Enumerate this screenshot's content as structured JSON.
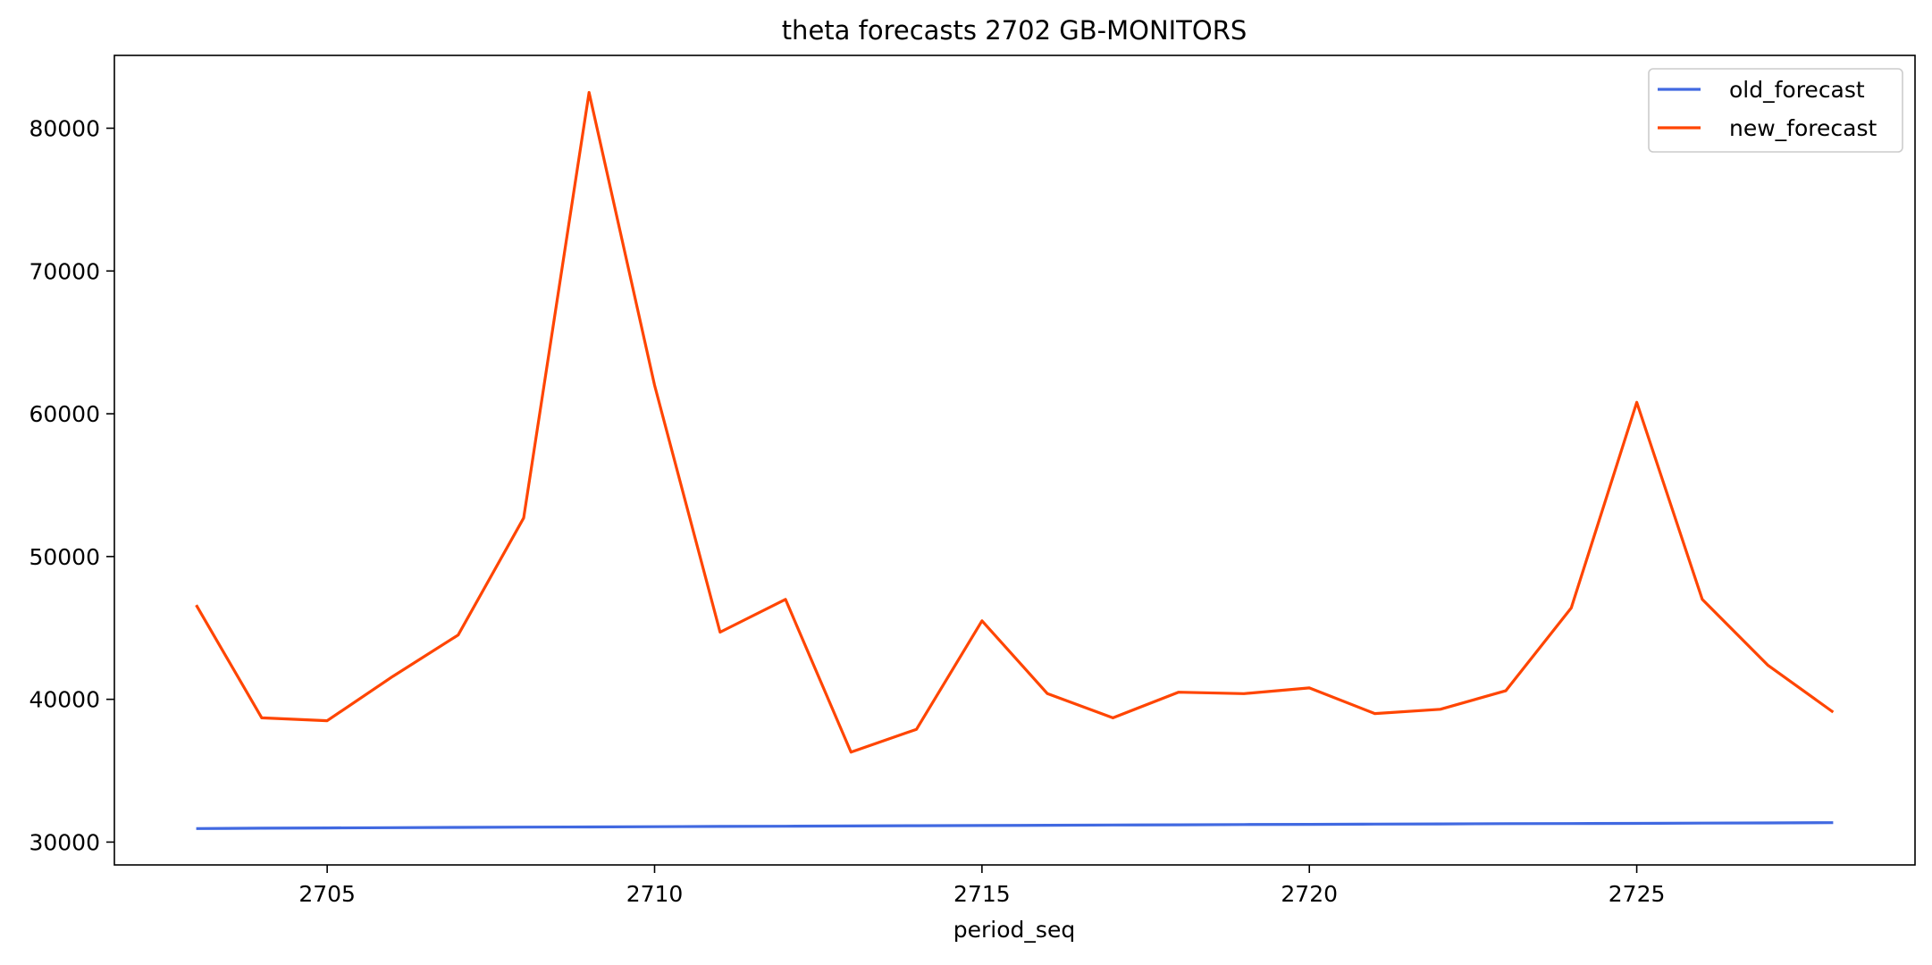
{
  "chart_data": {
    "type": "line",
    "title": "theta forecasts 2702 GB-MONITORS",
    "xlabel": "period_seq",
    "ylabel": "",
    "x": [
      2703,
      2704,
      2705,
      2706,
      2707,
      2708,
      2709,
      2710,
      2711,
      2712,
      2713,
      2714,
      2715,
      2716,
      2717,
      2718,
      2719,
      2720,
      2721,
      2722,
      2723,
      2724,
      2725,
      2726,
      2727,
      2728
    ],
    "xlim": [
      2701.75,
      2729.25
    ],
    "ylim": [
      28400,
      85100
    ],
    "xticks": [
      2705,
      2710,
      2715,
      2720,
      2725
    ],
    "yticks": [
      30000,
      40000,
      50000,
      60000,
      70000,
      80000
    ],
    "grid": false,
    "legend_position": "upper right",
    "series": [
      {
        "name": "old_forecast",
        "color": "#4169E1",
        "values": [
          30950,
          30970,
          30990,
          31010,
          31030,
          31050,
          31060,
          31080,
          31100,
          31110,
          31130,
          31150,
          31160,
          31180,
          31200,
          31210,
          31230,
          31240,
          31260,
          31270,
          31290,
          31300,
          31310,
          31330,
          31340,
          31360
        ]
      },
      {
        "name": "new_forecast",
        "color": "#FF4500",
        "values": [
          46600,
          38700,
          38500,
          41600,
          44500,
          52700,
          82500,
          62000,
          44700,
          47000,
          36300,
          37900,
          45500,
          40400,
          38700,
          40500,
          40400,
          40800,
          39000,
          39300,
          40600,
          46400,
          60800,
          47000,
          42400,
          39100
        ]
      }
    ]
  }
}
